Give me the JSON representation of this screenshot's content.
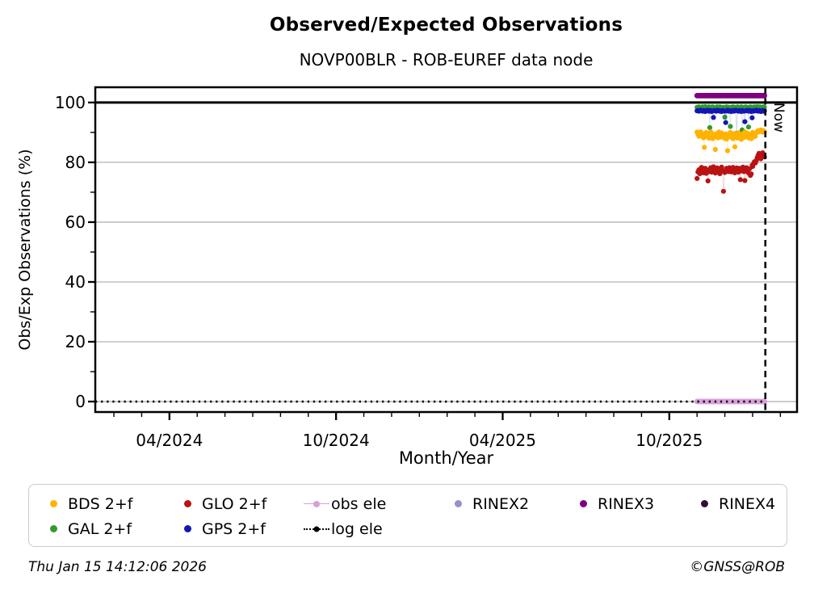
{
  "title": "Observed/Expected Observations",
  "subtitle": "NOVP00BLR - ROB-EUREF data node",
  "now_label": "Now",
  "footer": {
    "timestamp": "Thu Jan 15 14:12:06 2026",
    "copyright": "©GNSS@ROB"
  },
  "chart_data": {
    "type": "scatter",
    "title": "Observed/Expected Observations",
    "subtitle": "NOVP00BLR - ROB-EUREF data node",
    "xlabel": "Month/Year",
    "ylabel": "Obs/Exp Observations (%)",
    "xlim_months_since_2024_01": [
      0.33,
      25.6
    ],
    "ylim": [
      -3.5,
      105.1
    ],
    "grid": true,
    "grid_color": "#b3b3b3",
    "x_ticks": [
      {
        "label": "04/2024",
        "m": 3
      },
      {
        "label": "10/2024",
        "m": 9
      },
      {
        "label": "04/2025",
        "m": 15
      },
      {
        "label": "10/2025",
        "m": 21
      }
    ],
    "x_minor_tick_every_months": 1,
    "y_ticks": [
      {
        "label": "0",
        "v": 0
      },
      {
        "label": "20",
        "v": 20
      },
      {
        "label": "40",
        "v": 40
      },
      {
        "label": "60",
        "v": 60
      },
      {
        "label": "80",
        "v": 80
      },
      {
        "label": "100",
        "v": 100
      }
    ],
    "y_minor_ticks": [
      10,
      30,
      50,
      70,
      90
    ],
    "reference_line_100": {
      "y": 100,
      "color": "#000000",
      "width": 3
    },
    "now_line": {
      "date": "2026-01-15",
      "style": "dashed",
      "color": "#000000"
    },
    "series": [
      {
        "name": "GAL 2+f",
        "color": "#2e9b2e",
        "marker": "dot",
        "start_date": "2025-11-01",
        "values": [
          98.4,
          98.3,
          98.5,
          98.4,
          98.2,
          98.4,
          98.5,
          98.3,
          98.4,
          98.6,
          98.3,
          98.4,
          98.2,
          98.5,
          91.6,
          98.4,
          98.3,
          98.5,
          98.4,
          98.3,
          98.2,
          98.4,
          98.5,
          98.4,
          98.3,
          98.5,
          98.4,
          98.2,
          98.3,
          98.4,
          95.1,
          98.4,
          98.5,
          98.3,
          98.4,
          98.2,
          92.0,
          98.4,
          98.3,
          98.5,
          98.4,
          98.3,
          98.4,
          98.2,
          98.5,
          98.4,
          98.3,
          98.4,
          98.5,
          90.8,
          98.3,
          98.4,
          98.2,
          98.5,
          98.4,
          98.3,
          91.8,
          98.4,
          98.5,
          98.3,
          98.4,
          98.2,
          98.4,
          98.5,
          98.3,
          98.4,
          98.6,
          98.4,
          98.3,
          98.5,
          98.4,
          98.3,
          98.4,
          98.5,
          98.4
        ]
      },
      {
        "name": "GPS 2+f",
        "color": "#1414b8",
        "marker": "dot",
        "start_date": "2025-11-01",
        "values": [
          97.2,
          97.3,
          97.1,
          97.2,
          97.4,
          97.2,
          97.1,
          97.3,
          97.2,
          97.0,
          97.3,
          97.2,
          97.4,
          97.1,
          97.2,
          97.3,
          97.0,
          97.2,
          95.0,
          97.3,
          97.2,
          97.1,
          97.4,
          97.2,
          97.3,
          97.1,
          97.2,
          97.0,
          97.3,
          97.2,
          97.1,
          93.3,
          97.2,
          97.4,
          97.1,
          97.3,
          97.2,
          97.0,
          97.2,
          97.3,
          97.1,
          97.2,
          97.4,
          89.6,
          97.2,
          97.1,
          97.3,
          97.2,
          97.0,
          97.3,
          97.2,
          97.1,
          93.6,
          97.2,
          97.3,
          97.4,
          97.1,
          97.2,
          97.3,
          97.0,
          94.9,
          97.2,
          97.1,
          97.3,
          97.2,
          97.4,
          97.2,
          97.1,
          97.3,
          97.2,
          97.0,
          97.2,
          97.3,
          97.1,
          97.2
        ]
      },
      {
        "name": "BDS 2+f",
        "color": "#ffb300",
        "marker": "dot",
        "start_date": "2025-11-01",
        "values": [
          90.1,
          89.4,
          88.7,
          89.8,
          90.2,
          88.9,
          89.5,
          88.2,
          85.0,
          89.1,
          90.0,
          88.6,
          89.3,
          88.1,
          89.7,
          90.2,
          88.8,
          87.9,
          89.4,
          88.5,
          84.3,
          88.9,
          89.6,
          88.2,
          90.1,
          89.0,
          88.4,
          89.8,
          88.7,
          89.2,
          88.0,
          89.5,
          87.8,
          83.9,
          88.6,
          89.3,
          90.0,
          88.4,
          89.1,
          87.9,
          89.6,
          85.2,
          88.8,
          89.4,
          88.1,
          89.9,
          88.5,
          89.2,
          87.7,
          88.9,
          89.5,
          88.3,
          90.2,
          89.0,
          88.6,
          89.7,
          88.2,
          89.3,
          88.8,
          87.9,
          89.1,
          90.0,
          88.5,
          89.4,
          88.7,
          89.8,
          90.3,
          90.6,
          90.2,
          90.5,
          90.8,
          90.4,
          90.1,
          90.6,
          90.3
        ]
      },
      {
        "name": "GLO 2+f",
        "color": "#b91313",
        "marker": "dot",
        "start_date": "2025-11-01",
        "values": [
          74.6,
          76.8,
          77.5,
          76.2,
          77.9,
          78.3,
          77.1,
          76.5,
          77.8,
          78.0,
          76.3,
          77.4,
          73.8,
          76.9,
          77.6,
          78.2,
          76.7,
          77.3,
          78.5,
          77.0,
          76.4,
          77.8,
          78.1,
          76.8,
          77.5,
          76.2,
          77.9,
          78.4,
          77.2,
          70.3,
          76.6,
          77.3,
          78.0,
          77.5,
          76.9,
          78.2,
          77.4,
          76.8,
          77.7,
          78.3,
          77.0,
          76.5,
          77.9,
          78.1,
          77.3,
          76.7,
          78.0,
          74.2,
          77.6,
          77.1,
          78.4,
          76.9,
          73.9,
          77.5,
          78.2,
          77.0,
          76.4,
          77.8,
          75.6,
          76.1,
          79.0,
          78.6,
          79.5,
          80.2,
          79.8,
          80.6,
          81.5,
          82.3,
          83.0,
          82.0,
          81.2,
          82.6,
          83.2,
          82.1,
          81.8
        ]
      },
      {
        "name": "RINEX3",
        "color": "#800080",
        "marker": "dot",
        "start_date": "2025-11-01",
        "constant": 102.3,
        "days": 75
      },
      {
        "name": "RINEX2",
        "color": "#9b8fce",
        "marker": "dot",
        "start_date": "2025-11-01",
        "values": []
      },
      {
        "name": "RINEX4",
        "color": "#2d1130",
        "marker": "dot",
        "start_date": "2025-11-01",
        "values": []
      },
      {
        "name": "obs ele",
        "color": "#d8a0d8",
        "marker": "dot",
        "start_date": "2025-11-01",
        "constant": 0,
        "days": 75
      },
      {
        "name": "log ele",
        "color": "#000000",
        "type": "hline-dotted",
        "y": 0,
        "from": "plot-left",
        "to_date": "2026-01-15"
      }
    ]
  },
  "legend": {
    "rows": [
      [
        {
          "label": "BDS 2+f",
          "marker": "dot",
          "color": "#ffb300"
        },
        {
          "label": "GLO 2+f",
          "marker": "dot",
          "color": "#b91313"
        },
        {
          "label": "obs ele",
          "marker": "line-dot",
          "color": "#d8a0d8"
        },
        {
          "label": "RINEX2",
          "marker": "dot",
          "color": "#9b8fce"
        },
        {
          "label": "RINEX3",
          "marker": "dot",
          "color": "#800080"
        },
        {
          "label": "RINEX4",
          "marker": "dot",
          "color": "#2d1130"
        }
      ],
      [
        {
          "label": "GAL 2+f",
          "marker": "dot",
          "color": "#2e9b2e"
        },
        {
          "label": "GPS 2+f",
          "marker": "dot",
          "color": "#1414b8"
        },
        {
          "label": "log ele",
          "marker": "dotted-line-dot",
          "color": "#000000"
        }
      ]
    ]
  }
}
